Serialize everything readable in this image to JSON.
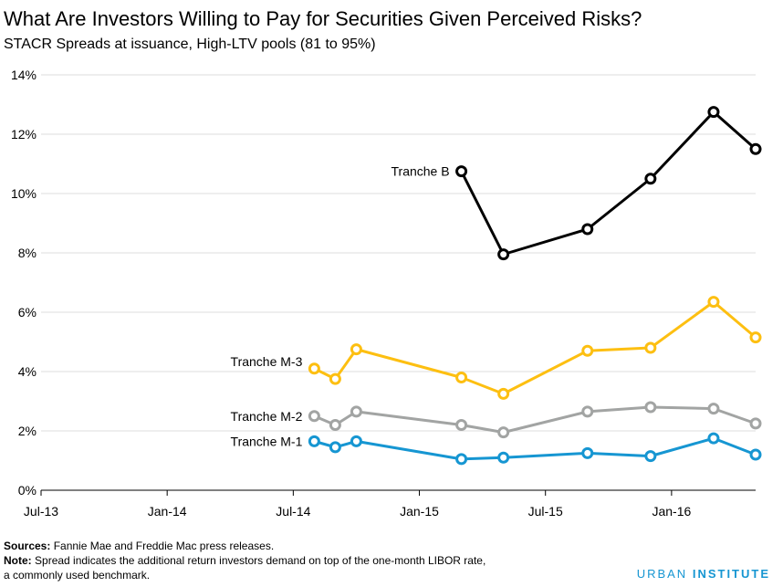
{
  "title": "What Are Investors Willing to Pay for Securities Given Perceived Risks?",
  "subtitle": "STACR Spreads at issuance, High-LTV pools (81 to 95%)",
  "footer": {
    "sources_label": "Sources:",
    "sources_text": "Fannie Mae and Freddie Mac press releases.",
    "note_label": "Note:",
    "note_text_1": "Spread indicates the additional return investors demand on top of the one-month LIBOR rate,",
    "note_text_2": "a commonly used benchmark."
  },
  "brand": {
    "part1": "URBAN",
    "part2": "INSTITUTE",
    "color": "#1696d2"
  },
  "chart_data": {
    "type": "line",
    "title": "What Are Investors Willing to Pay for Securities Given Perceived Risks?",
    "subtitle": "STACR Spreads at issuance, High-LTV pools (81 to 95%)",
    "xlabel": "",
    "ylabel": "",
    "x_ticks": [
      "Jul-13",
      "Jan-14",
      "Jul-14",
      "Jan-15",
      "Jul-15",
      "Jan-16"
    ],
    "xlim": [
      "2013-07",
      "2016-05"
    ],
    "y_ticks": [
      "0%",
      "2%",
      "4%",
      "6%",
      "8%",
      "10%",
      "12%",
      "14%"
    ],
    "ylim": [
      0,
      14
    ],
    "grid": "horizontal",
    "series": [
      {
        "name": "Tranche B",
        "color": "#000000",
        "x": [
          "2015-03",
          "2015-05",
          "2015-09",
          "2015-12",
          "2016-03",
          "2016-05"
        ],
        "values": [
          10.75,
          7.95,
          8.8,
          10.5,
          12.75,
          11.5
        ]
      },
      {
        "name": "Tranche M-3",
        "color": "#fdbf11",
        "x": [
          "2014-08",
          "2014-09",
          "2014-10",
          "2015-03",
          "2015-05",
          "2015-09",
          "2015-12",
          "2016-03",
          "2016-05"
        ],
        "values": [
          4.1,
          3.75,
          4.75,
          3.8,
          3.25,
          4.7,
          4.8,
          6.35,
          5.15
        ]
      },
      {
        "name": "Tranche M-2",
        "color": "#a2a4a3",
        "x": [
          "2014-08",
          "2014-09",
          "2014-10",
          "2015-03",
          "2015-05",
          "2015-09",
          "2015-12",
          "2016-03",
          "2016-05"
        ],
        "values": [
          2.5,
          2.2,
          2.65,
          2.2,
          1.95,
          2.65,
          2.8,
          2.75,
          2.25
        ]
      },
      {
        "name": "Tranche M-1",
        "color": "#1696d2",
        "x": [
          "2014-08",
          "2014-09",
          "2014-10",
          "2015-03",
          "2015-05",
          "2015-09",
          "2015-12",
          "2016-03",
          "2016-05"
        ],
        "values": [
          1.65,
          1.45,
          1.65,
          1.05,
          1.1,
          1.25,
          1.15,
          1.75,
          1.2
        ]
      }
    ]
  }
}
